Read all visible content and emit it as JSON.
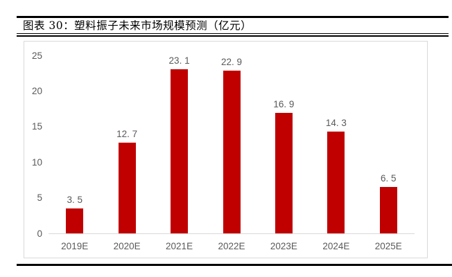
{
  "figure": {
    "title": "图表 30：塑料振子未来市场规模预测（亿元）"
  },
  "chart_data": {
    "type": "bar",
    "title": "塑料振子未来市场规模预测（亿元）",
    "categories": [
      "2019E",
      "2020E",
      "2021E",
      "2022E",
      "2023E",
      "2024E",
      "2025E"
    ],
    "values": [
      3.5,
      12.7,
      23.1,
      22.9,
      16.9,
      14.3,
      6.5
    ],
    "value_labels": [
      "3. 5",
      "12. 7",
      "23. 1",
      "22. 9",
      "16. 9",
      "14. 3",
      "6. 5"
    ],
    "y_ticks": [
      0,
      5,
      10,
      15,
      20,
      25
    ],
    "ylim": [
      0,
      25
    ],
    "xlabel": "",
    "ylabel": "",
    "grid": false,
    "legend": false,
    "bar_color": "#c00000",
    "label_color": "#595959",
    "axis_color": "#d9d9d9"
  }
}
